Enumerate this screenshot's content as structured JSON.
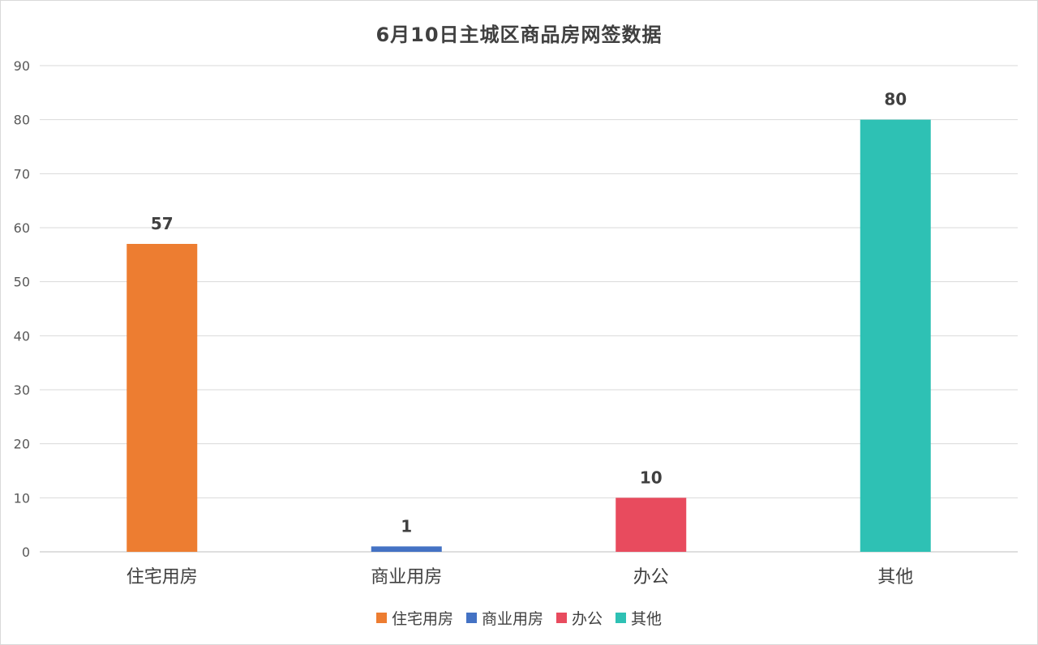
{
  "chart_data": {
    "type": "bar",
    "title": "6月10日主城区商品房网签数据",
    "categories": [
      "住宅用房",
      "商业用房",
      "办公",
      "其他"
    ],
    "values": [
      57,
      1,
      10,
      80
    ],
    "colors": [
      "#ED7D31",
      "#4472C4",
      "#E84B5E",
      "#2EC1B4"
    ],
    "ylim": [
      0,
      90
    ],
    "yticks": [
      0,
      10,
      20,
      30,
      40,
      50,
      60,
      70,
      80,
      90
    ],
    "grid": true,
    "legend_position": "bottom",
    "data_labels": true
  }
}
